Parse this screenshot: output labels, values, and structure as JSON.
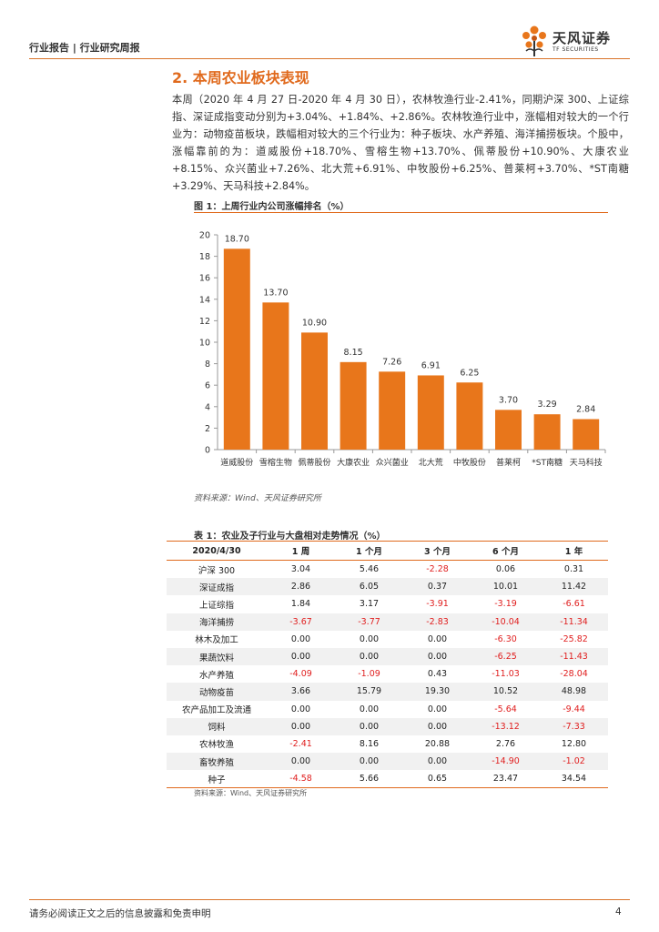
{
  "header": {
    "left": "行业报告 | 行业研究周报",
    "brand": "天风证券",
    "brand_sub": "TF SECURITIES"
  },
  "section_title": "2. 本周农业板块表现",
  "paragraph": "本周（2020 年 4 月 27 日-2020 年 4 月 30 日），农林牧渔行业-2.41%，同期沪深 300、上证综指、深证成指变动分别为+3.04%、+1.84%、+2.86%。农林牧渔行业中，涨幅相对较大的一个行业为：动物疫苗板块，跌幅相对较大的三个行业为：种子板块、水产养殖、海洋捕捞板块。个股中，涨幅靠前的为：道威股份+18.70%、雪榕生物+13.70%、佩蒂股份+10.90%、大康农业+8.15%、众兴菌业+7.26%、北大荒+6.91%、中牧股份+6.25%、普莱柯+3.70%、*ST南糖+3.29%、天马科技+2.84%。",
  "figure1": {
    "title": "图 1：上周行业内公司涨幅排名（%）",
    "source": "资料来源：Wind、天风证券研究所"
  },
  "chart_data": {
    "type": "bar",
    "title": "上周行业内公司涨幅排名（%）",
    "categories": [
      "道威股份",
      "雪榕生物",
      "佩蒂股份",
      "大康农业",
      "众兴菌业",
      "北大荒",
      "中牧股份",
      "普莱柯",
      "*ST南糖",
      "天马科技"
    ],
    "values": [
      18.7,
      13.7,
      10.9,
      8.15,
      7.26,
      6.91,
      6.25,
      3.7,
      3.29,
      2.84
    ],
    "value_labels": [
      "18.70",
      "13.70",
      "10.90",
      "8.15",
      "7.26",
      "6.91",
      "6.25",
      "3.70",
      "3.29",
      "2.84"
    ],
    "yticks": [
      "0",
      "2",
      "4",
      "6",
      "8",
      "10",
      "12",
      "14",
      "16",
      "18",
      "20"
    ],
    "ylim": [
      0,
      20
    ],
    "xlabel": "",
    "ylabel": "",
    "bar_color": "#e8761b"
  },
  "table1": {
    "title": "表 1：农业及子行业与大盘相对走势情况（%）",
    "headers": [
      "2020/4/30",
      "1 周",
      "1 个月",
      "3 个月",
      "6 个月",
      "1 年"
    ],
    "rows": [
      [
        "沪深 300",
        "3.04",
        "5.46",
        "-2.28",
        "0.06",
        "0.31"
      ],
      [
        "深证成指",
        "2.86",
        "6.05",
        "0.37",
        "10.01",
        "11.42"
      ],
      [
        "上证综指",
        "1.84",
        "3.17",
        "-3.91",
        "-3.19",
        "-6.61"
      ],
      [
        "海洋捕捞",
        "-3.67",
        "-3.77",
        "-2.83",
        "-10.04",
        "-11.34"
      ],
      [
        "林木及加工",
        "0.00",
        "0.00",
        "0.00",
        "-6.30",
        "-25.82"
      ],
      [
        "果蔬饮料",
        "0.00",
        "0.00",
        "0.00",
        "-6.25",
        "-11.43"
      ],
      [
        "水产养殖",
        "-4.09",
        "-1.09",
        "0.43",
        "-11.03",
        "-28.04"
      ],
      [
        "动物疫苗",
        "3.66",
        "15.79",
        "19.30",
        "10.52",
        "48.98"
      ],
      [
        "农产品加工及流通",
        "0.00",
        "0.00",
        "0.00",
        "-5.64",
        "-9.44"
      ],
      [
        "饲料",
        "0.00",
        "0.00",
        "0.00",
        "-13.12",
        "-7.33"
      ],
      [
        "农林牧渔",
        "-2.41",
        "8.16",
        "20.88",
        "2.76",
        "12.80"
      ],
      [
        "畜牧养殖",
        "0.00",
        "0.00",
        "0.00",
        "-14.90",
        "-1.02"
      ],
      [
        "种子",
        "-4.58",
        "5.66",
        "0.65",
        "23.47",
        "34.54"
      ]
    ],
    "source": "资料来源：Wind、天风证券研究所"
  },
  "footer": {
    "disclaimer": "请务必阅读正文之后的信息披露和免责申明",
    "page": "4"
  }
}
